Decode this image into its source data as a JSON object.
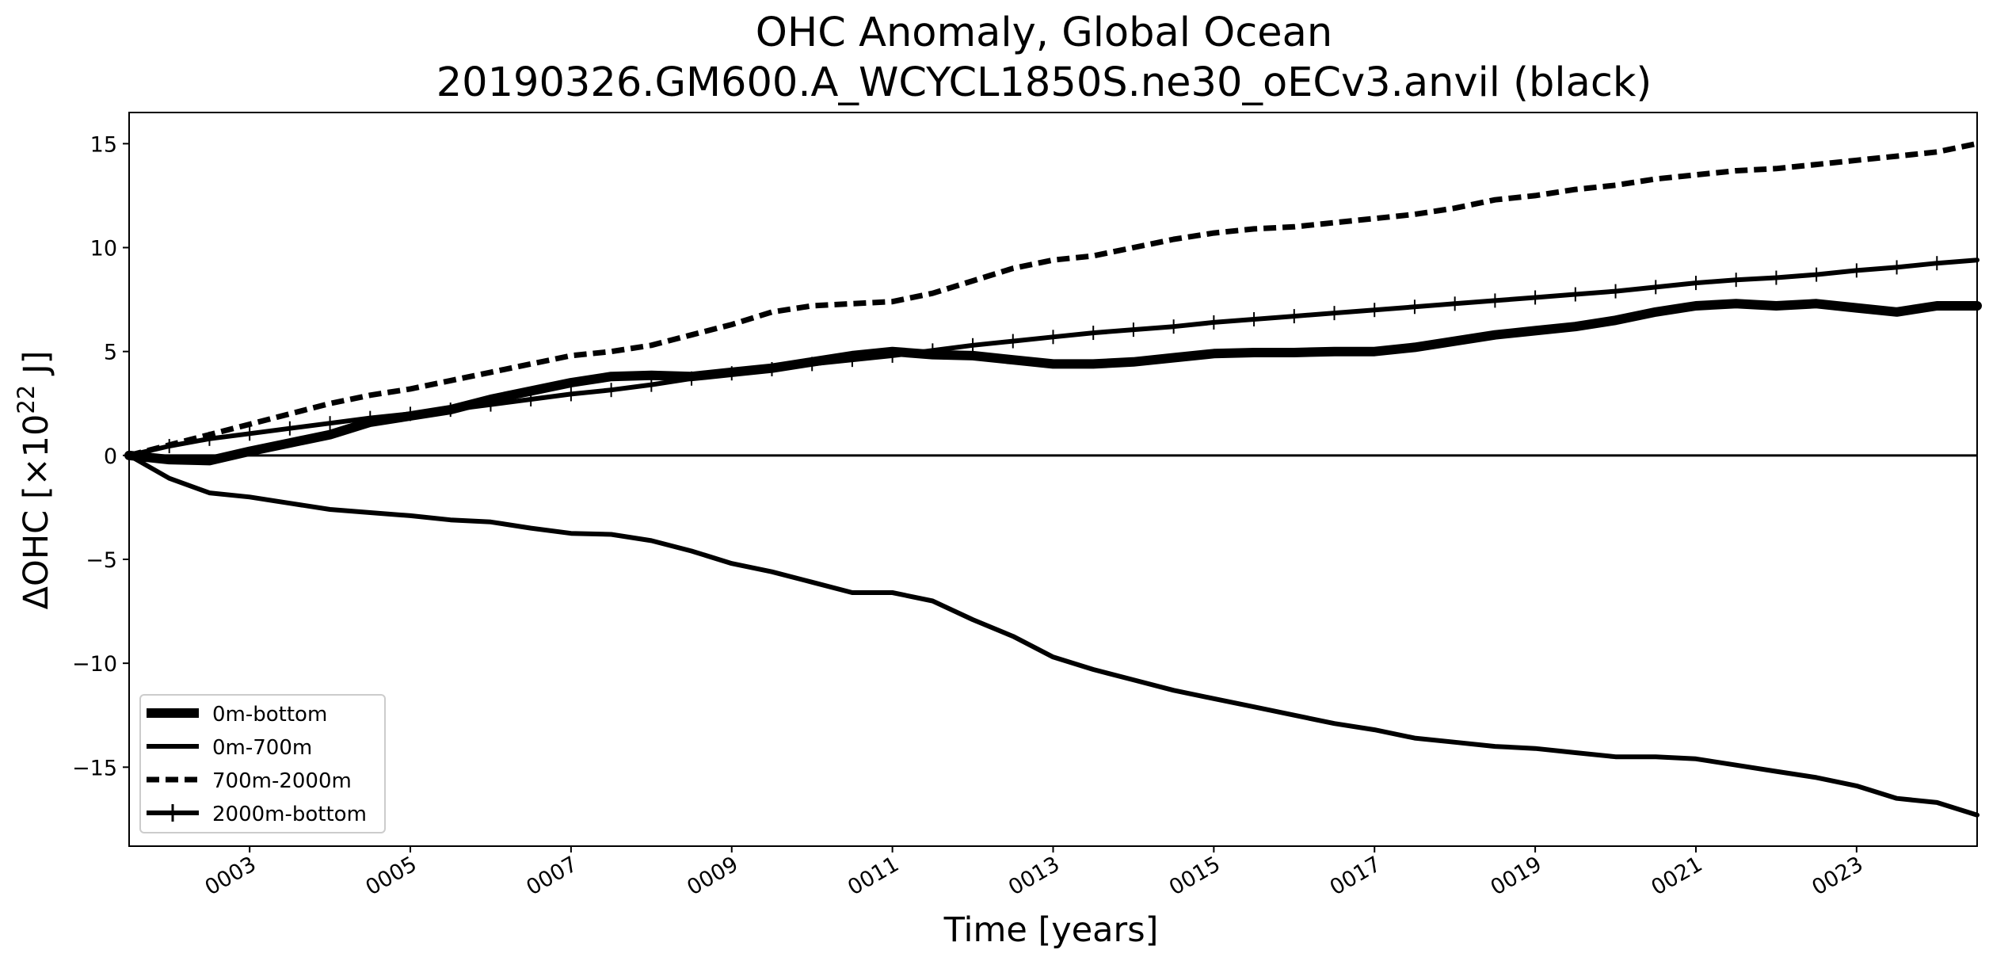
{
  "chart_data": {
    "type": "line",
    "title": "OHC Anomaly, Global Ocean",
    "subtitle": "20190326.GM600.A_WCYCL1850S.ne30_oECv3.anvil (black)",
    "xlabel": "Time [years]",
    "ylabel_main": "ΔOHC [×10",
    "ylabel_sup": "22",
    "ylabel_end": " J]",
    "xlim": [
      1.5,
      24.5
    ],
    "ylim": [
      -18.8,
      16.5
    ],
    "xticks": [
      {
        "value": 3,
        "label": "0003"
      },
      {
        "value": 5,
        "label": "0005"
      },
      {
        "value": 7,
        "label": "0007"
      },
      {
        "value": 9,
        "label": "0009"
      },
      {
        "value": 11,
        "label": "0011"
      },
      {
        "value": 13,
        "label": "0013"
      },
      {
        "value": 15,
        "label": "0015"
      },
      {
        "value": 17,
        "label": "0017"
      },
      {
        "value": 19,
        "label": "0019"
      },
      {
        "value": 21,
        "label": "0021"
      },
      {
        "value": 23,
        "label": "0023"
      }
    ],
    "yticks": [
      {
        "value": 15,
        "label": "15"
      },
      {
        "value": 10,
        "label": "10"
      },
      {
        "value": 5,
        "label": "5"
      },
      {
        "value": 0,
        "label": "0"
      },
      {
        "value": -5,
        "label": "−5"
      },
      {
        "value": -10,
        "label": "−10"
      },
      {
        "value": -15,
        "label": "−15"
      }
    ],
    "zero_line": 0,
    "legend_position": "lower-left",
    "series": [
      {
        "name": "0m-bottom",
        "style": "thick-solid",
        "color": "#000000",
        "x": [
          1.5,
          2.0,
          2.5,
          3.0,
          3.5,
          4.0,
          4.5,
          5.0,
          5.5,
          6.0,
          6.5,
          7.0,
          7.5,
          8.0,
          8.5,
          9.0,
          9.5,
          10.0,
          10.5,
          11.0,
          11.5,
          12.0,
          12.5,
          13.0,
          13.5,
          14.0,
          14.5,
          15.0,
          15.5,
          16.0,
          16.5,
          17.0,
          17.5,
          18.0,
          18.5,
          19.0,
          19.5,
          20.0,
          20.5,
          21.0,
          21.5,
          22.0,
          22.5,
          23.0,
          23.5,
          24.0,
          24.5
        ],
        "y": [
          0.0,
          -0.2,
          -0.25,
          0.2,
          0.6,
          1.0,
          1.6,
          1.9,
          2.2,
          2.7,
          3.1,
          3.5,
          3.8,
          3.85,
          3.8,
          4.0,
          4.2,
          4.5,
          4.8,
          5.0,
          4.85,
          4.8,
          4.6,
          4.4,
          4.4,
          4.5,
          4.7,
          4.9,
          4.95,
          4.95,
          5.0,
          5.0,
          5.2,
          5.5,
          5.8,
          6.0,
          6.2,
          6.5,
          6.9,
          7.2,
          7.3,
          7.2,
          7.3,
          7.1,
          6.9,
          7.2,
          7.2
        ]
      },
      {
        "name": "0m-700m",
        "style": "solid",
        "color": "#000000",
        "x": [
          1.5,
          2.0,
          2.5,
          3.0,
          3.5,
          4.0,
          4.5,
          5.0,
          5.5,
          6.0,
          6.5,
          7.0,
          7.5,
          8.0,
          8.5,
          9.0,
          9.5,
          10.0,
          10.5,
          11.0,
          11.5,
          12.0,
          12.5,
          13.0,
          13.5,
          14.0,
          14.5,
          15.0,
          15.5,
          16.0,
          16.5,
          17.0,
          17.5,
          18.0,
          18.5,
          19.0,
          19.5,
          20.0,
          20.5,
          21.0,
          21.5,
          22.0,
          22.5,
          23.0,
          23.5,
          24.0,
          24.5
        ],
        "y": [
          0.0,
          -1.1,
          -1.8,
          -2.0,
          -2.3,
          -2.6,
          -2.75,
          -2.9,
          -3.1,
          -3.2,
          -3.5,
          -3.75,
          -3.8,
          -4.1,
          -4.6,
          -5.2,
          -5.6,
          -6.1,
          -6.6,
          -6.6,
          -7.0,
          -7.9,
          -8.7,
          -9.7,
          -10.3,
          -10.8,
          -11.3,
          -11.7,
          -12.1,
          -12.5,
          -12.9,
          -13.2,
          -13.6,
          -13.8,
          -14.0,
          -14.1,
          -14.3,
          -14.5,
          -14.5,
          -14.6,
          -14.9,
          -15.2,
          -15.5,
          -15.9,
          -16.5,
          -16.7,
          -17.3
        ]
      },
      {
        "name": "700m-2000m",
        "style": "dashed",
        "color": "#000000",
        "x": [
          1.5,
          2.0,
          2.5,
          3.0,
          3.5,
          4.0,
          4.5,
          5.0,
          5.5,
          6.0,
          6.5,
          7.0,
          7.5,
          8.0,
          8.5,
          9.0,
          9.5,
          10.0,
          10.5,
          11.0,
          11.5,
          12.0,
          12.5,
          13.0,
          13.5,
          14.0,
          14.5,
          15.0,
          15.5,
          16.0,
          16.5,
          17.0,
          17.5,
          18.0,
          18.5,
          19.0,
          19.5,
          20.0,
          20.5,
          21.0,
          21.5,
          22.0,
          22.5,
          23.0,
          23.5,
          24.0,
          24.5
        ],
        "y": [
          0.0,
          0.5,
          1.0,
          1.5,
          2.0,
          2.5,
          2.9,
          3.2,
          3.6,
          4.0,
          4.4,
          4.8,
          5.0,
          5.3,
          5.8,
          6.3,
          6.9,
          7.2,
          7.3,
          7.4,
          7.8,
          8.4,
          9.0,
          9.4,
          9.6,
          10.0,
          10.4,
          10.7,
          10.9,
          11.0,
          11.2,
          11.4,
          11.6,
          11.9,
          12.3,
          12.5,
          12.8,
          13.0,
          13.3,
          13.5,
          13.7,
          13.8,
          14.0,
          14.2,
          14.4,
          14.6,
          15.0
        ]
      },
      {
        "name": "2000m-bottom",
        "style": "solid-with-markers",
        "color": "#000000",
        "x": [
          1.5,
          2.0,
          2.5,
          3.0,
          3.5,
          4.0,
          4.5,
          5.0,
          5.5,
          6.0,
          6.5,
          7.0,
          7.5,
          8.0,
          8.5,
          9.0,
          9.5,
          10.0,
          10.5,
          11.0,
          11.5,
          12.0,
          12.5,
          13.0,
          13.5,
          14.0,
          14.5,
          15.0,
          15.5,
          16.0,
          16.5,
          17.0,
          17.5,
          18.0,
          18.5,
          19.0,
          19.5,
          20.0,
          20.5,
          21.0,
          21.5,
          22.0,
          22.5,
          23.0,
          23.5,
          24.0,
          24.5
        ],
        "y": [
          0.0,
          0.45,
          0.8,
          1.05,
          1.3,
          1.55,
          1.8,
          2.0,
          2.2,
          2.45,
          2.7,
          2.95,
          3.15,
          3.4,
          3.7,
          3.95,
          4.15,
          4.4,
          4.6,
          4.8,
          5.05,
          5.3,
          5.5,
          5.7,
          5.9,
          6.05,
          6.2,
          6.4,
          6.55,
          6.7,
          6.85,
          7.0,
          7.15,
          7.3,
          7.45,
          7.6,
          7.75,
          7.9,
          8.1,
          8.3,
          8.45,
          8.55,
          8.7,
          8.9,
          9.05,
          9.25,
          9.4
        ]
      }
    ]
  }
}
